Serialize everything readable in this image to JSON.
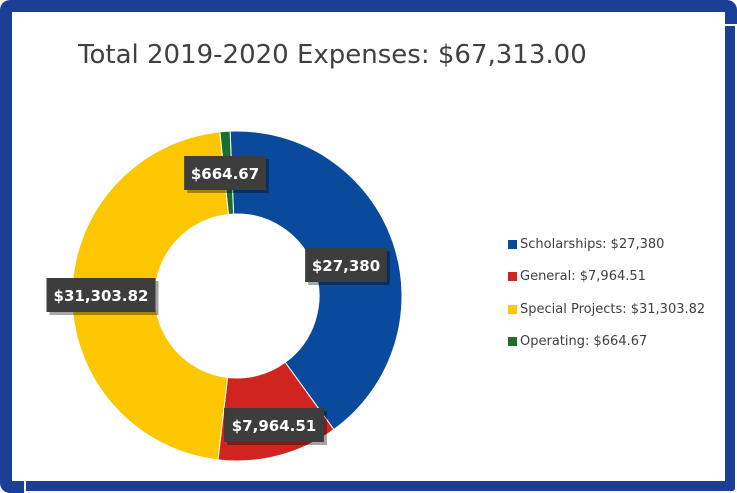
{
  "chart_data": {
    "type": "pie",
    "subtype": "donut",
    "title": "Total 2019-2020 Expenses: $67,313.00",
    "legend_position": "right",
    "slices": [
      {
        "legend": "Scholarships: $27,380",
        "data_label": "$27,380",
        "value": 27380,
        "color": "#0a4a9c"
      },
      {
        "legend": "General: $7,964.51",
        "data_label": "$7,964.51",
        "value": 7964.51,
        "color": "#d0251e"
      },
      {
        "legend": "Special Projects: $31,303.82",
        "data_label": "$31,303.82",
        "value": 31303.82,
        "color": "#fdc700"
      },
      {
        "legend": "Operating: $664.67",
        "data_label": "$664.67",
        "value": 664.67,
        "color": "#18702c"
      }
    ]
  }
}
